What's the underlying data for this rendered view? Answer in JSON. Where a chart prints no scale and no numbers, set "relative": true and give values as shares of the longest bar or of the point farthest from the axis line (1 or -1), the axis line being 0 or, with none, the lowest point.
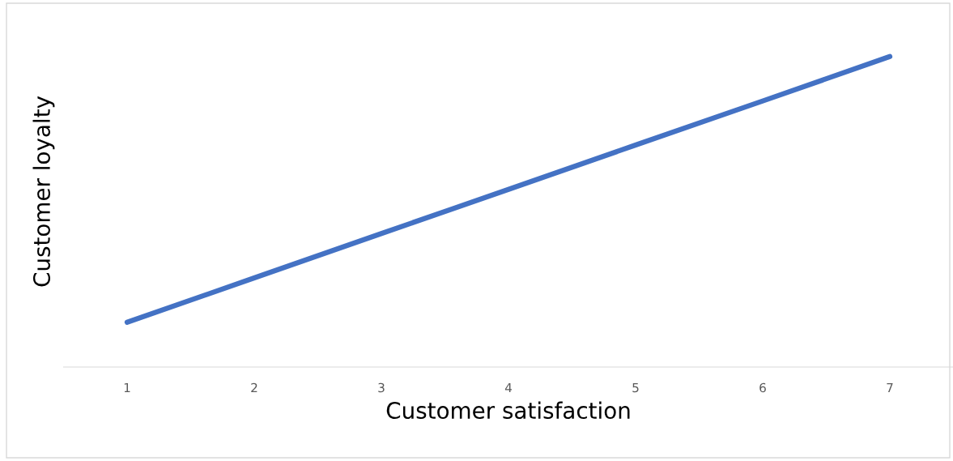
{
  "chart_data": {
    "type": "line",
    "xlabel": "Customer satisfaction",
    "ylabel": "Customer loyalty",
    "categories": [
      "1",
      "2",
      "3",
      "4",
      "5",
      "6",
      "7"
    ],
    "series": [
      {
        "color": "#4472c4",
        "values": [
          0.144,
          0.287,
          0.43,
          0.572,
          0.715,
          0.857,
          1.0
        ]
      }
    ],
    "relative": true,
    "grid": false
  }
}
